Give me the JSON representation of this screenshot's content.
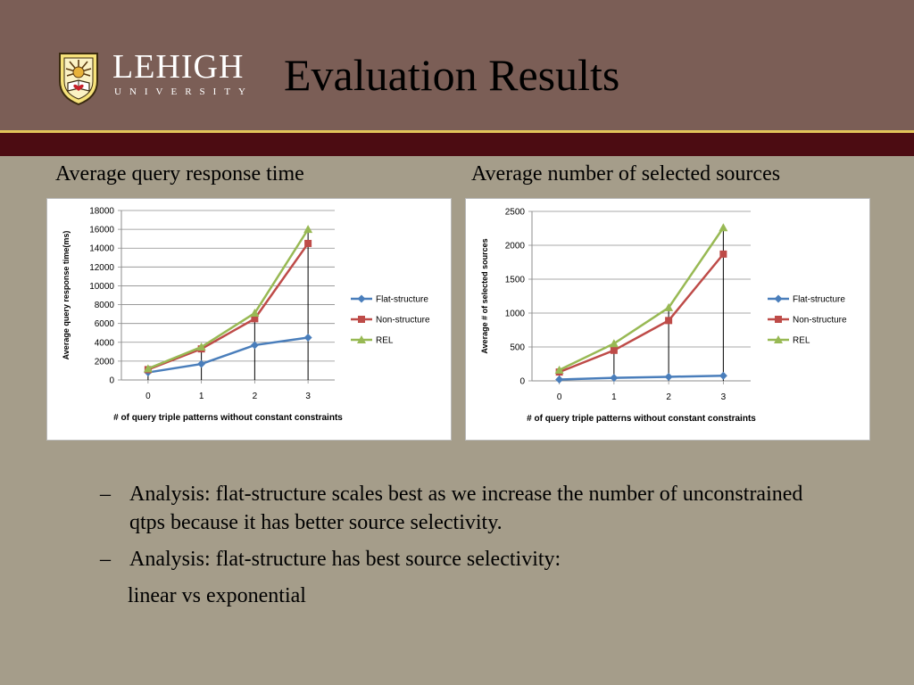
{
  "header": {
    "logo_word": "LEHIGH",
    "logo_sub": "UNIVERSITY",
    "title": "Evaluation Results"
  },
  "captions": {
    "left": "Average query response time",
    "right": "Average number of selected sources"
  },
  "colors": {
    "flat": "#4a7ebb",
    "non": "#be4b48",
    "rel": "#98b954"
  },
  "chart_data": [
    {
      "type": "line",
      "title": "",
      "xlabel": "# of query triple patterns without constant constraints",
      "ylabel": "Average query response time(ms)",
      "ylim": [
        0,
        18000
      ],
      "yticks": [
        "0",
        "2000",
        "4000",
        "6000",
        "8000",
        "10000",
        "12000",
        "14000",
        "16000",
        "18000"
      ],
      "categories": [
        "0",
        "1",
        "2",
        "3"
      ],
      "legend": "right",
      "grid": true,
      "series": [
        {
          "name": "Flat-structure",
          "values": [
            800,
            1700,
            3700,
            4500
          ],
          "color": "#4a7ebb",
          "marker": "diamond"
        },
        {
          "name": "Non-structure",
          "values": [
            1100,
            3300,
            6500,
            14500
          ],
          "color": "#be4b48",
          "marker": "square"
        },
        {
          "name": "REL",
          "values": [
            1200,
            3500,
            7100,
            16000
          ],
          "color": "#98b954",
          "marker": "triangle"
        }
      ]
    },
    {
      "type": "line",
      "title": "",
      "xlabel": "# of query triple patterns without constant constraints",
      "ylabel": "Average # of selected sources",
      "ylim": [
        0,
        2500
      ],
      "yticks": [
        "0",
        "500",
        "1000",
        "1500",
        "2000",
        "2500"
      ],
      "categories": [
        "0",
        "1",
        "2",
        "3"
      ],
      "legend": "right",
      "grid": true,
      "series": [
        {
          "name": "Flat-structure",
          "values": [
            20,
            45,
            60,
            75
          ],
          "color": "#4a7ebb",
          "marker": "diamond"
        },
        {
          "name": "Non-structure",
          "values": [
            130,
            450,
            890,
            1870
          ],
          "color": "#be4b48",
          "marker": "square"
        },
        {
          "name": "REL",
          "values": [
            160,
            550,
            1080,
            2260
          ],
          "color": "#98b954",
          "marker": "triangle"
        }
      ]
    }
  ],
  "bullets": [
    {
      "dash": "–",
      "text": "Analysis: flat-structure scales best as we increase the number of unconstrained qtps because it has better source selectivity."
    },
    {
      "dash": "–",
      "text": "Analysis: flat-structure has best source selectivity:"
    }
  ],
  "bullet_continuation": "linear vs exponential"
}
